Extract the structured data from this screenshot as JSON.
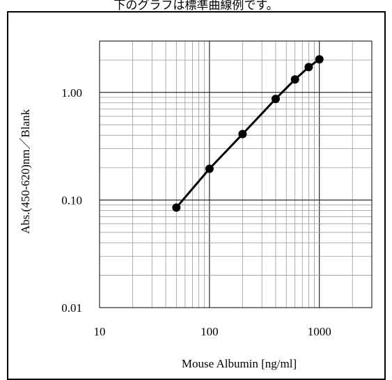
{
  "caption": "下のグラフは標準曲線例です。",
  "chart_data": {
    "type": "line",
    "title": "",
    "xlabel": "Mouse Albumin [ng/ml]",
    "ylabel": "Abs.(450-620)nm／Blank",
    "xscale": "log",
    "yscale": "log",
    "xlim": [
      10,
      3000
    ],
    "ylim": [
      0.01,
      3
    ],
    "x_ticks": [
      {
        "value": 10,
        "label": "10"
      },
      {
        "value": 100,
        "label": "100"
      },
      {
        "value": 1000,
        "label": "1000"
      }
    ],
    "y_ticks": [
      {
        "value": 0.01,
        "label": "0.01"
      },
      {
        "value": 0.1,
        "label": "0.10"
      },
      {
        "value": 1,
        "label": "1.00"
      }
    ],
    "grid": true,
    "series": [
      {
        "x": [
          50,
          100,
          200,
          400,
          600,
          800,
          1000
        ],
        "y": [
          0.085,
          0.195,
          0.41,
          0.87,
          1.32,
          1.72,
          2.03
        ]
      }
    ]
  }
}
